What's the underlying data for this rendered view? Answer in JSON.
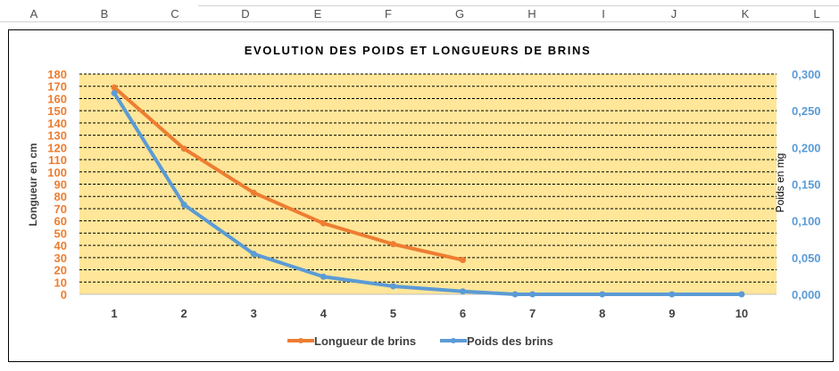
{
  "spreadsheet": {
    "column_letters": [
      "A",
      "B",
      "C",
      "D",
      "E",
      "F",
      "G",
      "H",
      "I",
      "J",
      "K",
      "L"
    ]
  },
  "chart_data": {
    "type": "line",
    "title": "EVOLUTION DES POIDS ET LONGUEURS DE BRINS",
    "x": [
      1,
      2,
      3,
      4,
      5,
      6,
      7,
      8,
      9,
      10
    ],
    "x_tick_labels": [
      "1",
      "2",
      "3",
      "4",
      "5",
      "6",
      "7",
      "8",
      "9",
      "10"
    ],
    "y_left": {
      "label": "Longueur en cm",
      "range": [
        0,
        180
      ],
      "ticks": [
        "0",
        "10",
        "20",
        "30",
        "40",
        "50",
        "60",
        "70",
        "80",
        "90",
        "100",
        "110",
        "120",
        "130",
        "140",
        "150",
        "160",
        "170",
        "180"
      ],
      "color": "#ED7D31"
    },
    "y_right": {
      "label": "Poids en mg",
      "range": [
        0,
        0.3
      ],
      "ticks": [
        "0,000",
        "0,050",
        "0,100",
        "0,150",
        "0,200",
        "0,250",
        "0,300"
      ],
      "color": "#5B9BD5"
    },
    "series": [
      {
        "name": "Longueur de brins",
        "axis": "left",
        "color": "#ED7D31",
        "points": [
          [
            1,
            169
          ],
          [
            2,
            119
          ],
          [
            3,
            83
          ],
          [
            4,
            58
          ],
          [
            5,
            41
          ],
          [
            6,
            28
          ]
        ]
      },
      {
        "name": "Poids des brins",
        "axis": "right",
        "color": "#5B9BD5",
        "points": [
          [
            1,
            0.274
          ],
          [
            2,
            0.122
          ],
          [
            3,
            0.055
          ],
          [
            4,
            0.024
          ],
          [
            5,
            0.011
          ],
          [
            6,
            0.004
          ],
          [
            6.75,
            0.0
          ],
          [
            7,
            0.0
          ],
          [
            8,
            0.0
          ],
          [
            9,
            0.0
          ],
          [
            10,
            0.0
          ]
        ]
      }
    ],
    "legend": [
      "Longueur de brins",
      "Poids des brins"
    ],
    "legend_position": "bottom",
    "plot_background": "#FFE699",
    "grid": "dashed horizontal"
  }
}
